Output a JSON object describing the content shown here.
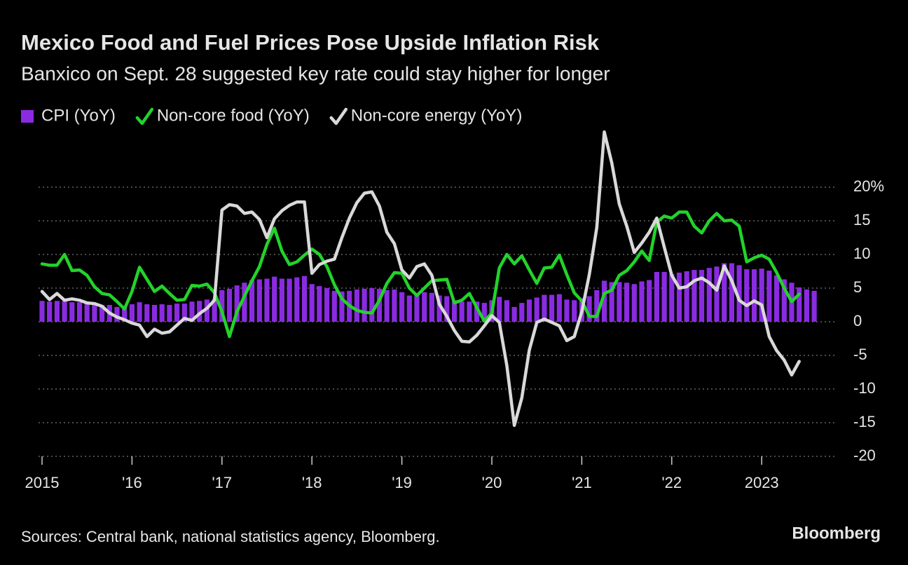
{
  "chart_data": {
    "type": "combo",
    "title": "Mexico Food and Fuel Prices Pose Upside Inflation Risk",
    "subtitle": "Banxico on Sept. 28 suggested key rate could stay higher for longer",
    "source": "Sources: Central bank, national statistics agency, Bloomberg.",
    "brand": "Bloomberg",
    "categories": [
      "2015",
      null,
      null,
      null,
      null,
      null,
      null,
      null,
      null,
      null,
      null,
      null,
      "'16",
      null,
      null,
      null,
      null,
      null,
      null,
      null,
      null,
      null,
      null,
      null,
      "'17",
      null,
      null,
      null,
      null,
      null,
      null,
      null,
      null,
      null,
      null,
      null,
      "'18",
      null,
      null,
      null,
      null,
      null,
      null,
      null,
      null,
      null,
      null,
      null,
      "'19",
      null,
      null,
      null,
      null,
      null,
      null,
      null,
      null,
      null,
      null,
      null,
      "'20",
      null,
      null,
      null,
      null,
      null,
      null,
      null,
      null,
      null,
      null,
      null,
      "'21",
      null,
      null,
      null,
      null,
      null,
      null,
      null,
      null,
      null,
      null,
      null,
      "'22",
      null,
      null,
      null,
      null,
      null,
      null,
      null,
      null,
      null,
      null,
      null,
      "2023",
      null,
      null,
      null,
      null,
      null,
      null,
      null
    ],
    "series": [
      {
        "name": "CPI (YoY)",
        "type": "bar",
        "color": "#8a2be2",
        "values": [
          3.1,
          3.0,
          3.1,
          3.1,
          2.9,
          2.9,
          2.7,
          2.6,
          2.5,
          2.5,
          2.2,
          2.1,
          2.6,
          2.9,
          2.6,
          2.5,
          2.6,
          2.5,
          2.7,
          2.7,
          3.0,
          3.1,
          3.3,
          3.4,
          4.7,
          4.9,
          5.4,
          5.8,
          6.2,
          6.3,
          6.4,
          6.7,
          6.4,
          6.4,
          6.6,
          6.8,
          5.6,
          5.3,
          5.0,
          4.6,
          4.5,
          4.6,
          4.8,
          4.9,
          5.0,
          4.9,
          4.7,
          4.8,
          4.4,
          3.9,
          4.0,
          4.4,
          4.3,
          3.9,
          3.8,
          3.2,
          3.0,
          3.0,
          3.0,
          2.8,
          3.2,
          3.7,
          3.2,
          2.2,
          2.8,
          3.3,
          3.6,
          4.0,
          4.0,
          4.1,
          3.3,
          3.2,
          3.5,
          3.8,
          4.7,
          6.1,
          5.9,
          5.9,
          5.8,
          5.6,
          6.0,
          6.2,
          7.4,
          7.4,
          7.1,
          7.3,
          7.5,
          7.7,
          7.7,
          8.0,
          8.2,
          8.7,
          8.7,
          8.4,
          7.8,
          7.8,
          7.9,
          7.6,
          6.9,
          6.3,
          5.8,
          5.1,
          4.8,
          4.6
        ]
      },
      {
        "name": "Non-core food (YoY)",
        "type": "line",
        "color": "#22d32a",
        "values": [
          8.6,
          8.4,
          8.4,
          10.0,
          7.6,
          7.7,
          6.9,
          5.2,
          4.2,
          4.0,
          3.0,
          1.9,
          4.5,
          8.1,
          6.3,
          4.5,
          5.3,
          4.2,
          3.2,
          3.3,
          5.4,
          5.3,
          5.6,
          4.3,
          1.5,
          -2.2,
          1.5,
          3.8,
          6.1,
          8.2,
          11.5,
          13.9,
          10.5,
          8.5,
          8.9,
          9.9,
          10.8,
          10.0,
          8.2,
          5.5,
          3.4,
          2.4,
          1.7,
          1.4,
          1.3,
          3.2,
          5.7,
          7.3,
          7.2,
          5.0,
          3.9,
          5.0,
          6.1,
          6.2,
          6.3,
          2.8,
          3.2,
          4.2,
          2.1,
          0.1,
          1.3,
          8.0,
          10.0,
          8.6,
          9.8,
          7.7,
          5.7,
          8.0,
          8.1,
          9.9,
          7.0,
          4.3,
          3.1,
          0.8,
          0.8,
          4.2,
          4.7,
          6.9,
          7.6,
          8.9,
          10.5,
          9.1,
          14.8,
          15.7,
          15.4,
          16.3,
          16.3,
          14.2,
          13.2,
          15.0,
          16.1,
          15.0,
          15.1,
          14.2,
          8.9,
          9.5,
          9.9,
          9.3,
          7.3,
          5.0,
          3.0,
          4.1,
          null,
          null
        ]
      },
      {
        "name": "Non-core energy (YoY)",
        "type": "line",
        "color": "#d9d9d9",
        "values": [
          4.5,
          3.3,
          4.2,
          3.2,
          3.4,
          3.2,
          2.8,
          2.7,
          2.3,
          1.3,
          0.7,
          0.3,
          -0.2,
          -0.5,
          -2.2,
          -1.1,
          -1.7,
          -1.5,
          -0.5,
          0.5,
          0.2,
          1.2,
          2.0,
          3.2,
          16.6,
          17.4,
          17.2,
          16.1,
          16.3,
          15.2,
          12.5,
          15.3,
          16.5,
          17.3,
          17.8,
          17.8,
          7.2,
          8.5,
          9.0,
          9.3,
          12.5,
          15.4,
          17.7,
          19.1,
          19.3,
          17.2,
          13.3,
          11.6,
          7.7,
          6.5,
          8.2,
          8.6,
          6.9,
          2.6,
          0.8,
          -1.3,
          -2.9,
          -3.0,
          -2.0,
          -0.6,
          0.9,
          -0.1,
          -6.5,
          -15.4,
          -11.3,
          -4.2,
          -0.1,
          0.4,
          -0.1,
          -0.6,
          -2.8,
          -2.2,
          1.5,
          7.0,
          14.0,
          28.2,
          23.6,
          17.5,
          14.2,
          10.3,
          11.7,
          13.3,
          15.4,
          11.1,
          6.9,
          5.0,
          5.2,
          6.1,
          6.5,
          5.8,
          4.7,
          8.3,
          6.1,
          3.2,
          2.4,
          3.1,
          2.5,
          -2.2,
          -4.3,
          -5.7,
          -7.9,
          -5.9,
          null,
          null
        ]
      }
    ],
    "ylim": [
      -20,
      29
    ],
    "yticks": [
      -20,
      -15,
      -10,
      -5,
      0,
      5,
      10,
      {
        "value": 15,
        "label": "15"
      },
      {
        "value": 20,
        "label": "20%"
      }
    ],
    "grid": true,
    "legend": "top-left"
  }
}
